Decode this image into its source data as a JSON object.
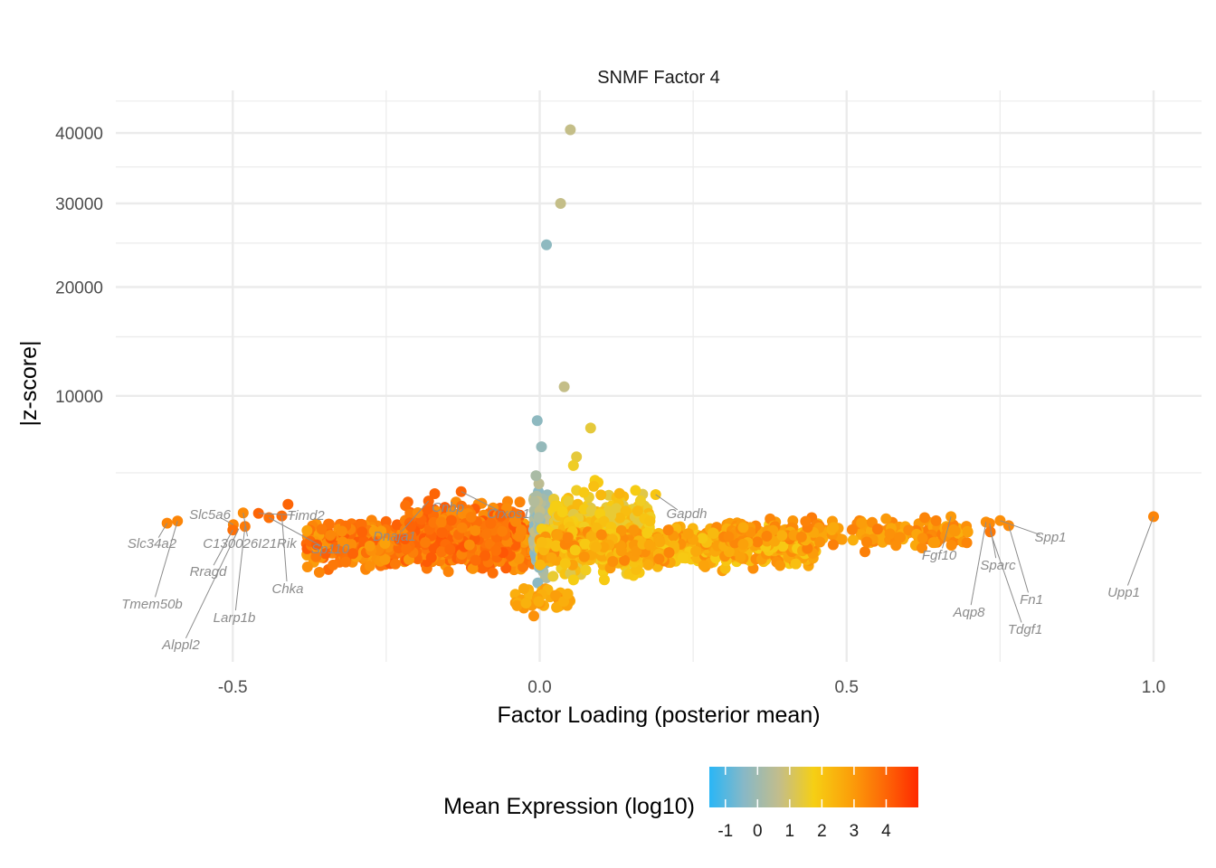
{
  "chart_data": {
    "type": "scatter",
    "title": "SNMF Factor 4",
    "xlabel": "Factor Loading (posterior mean)",
    "ylabel": "|z-score|",
    "x_ticks": [
      -0.5,
      0.0,
      0.5,
      1.0
    ],
    "x_tick_labels": [
      "-0.5",
      "0.0",
      "0.5",
      "1.0"
    ],
    "xlim": [
      -0.69,
      1.08
    ],
    "y_scale": "sqrt",
    "y_ticks": [
      10000,
      20000,
      30000,
      40000
    ],
    "y_tick_labels": [
      "10000",
      "20000",
      "30000",
      "40000"
    ],
    "ylim": [
      0,
      45000
    ],
    "grid": true,
    "legend": {
      "title": "Mean Expression (log10)",
      "position": "bottom",
      "range": [
        -1.5,
        5
      ],
      "ticks": [
        -1,
        0,
        1,
        2,
        3,
        4
      ],
      "tick_labels": [
        "-1",
        "0",
        "1",
        "2",
        "3",
        "4"
      ],
      "colors": [
        "#29b6f6",
        "#88b8c6",
        "#c2bd8c",
        "#f6cf14",
        "#fba20a",
        "#fd6a07",
        "#ff2a00"
      ]
    },
    "points": [
      {
        "x": 0.05,
        "y": 40500,
        "expr": 0.7
      },
      {
        "x": 0.034,
        "y": 30000,
        "expr": 0.7
      },
      {
        "x": 0.011,
        "y": 24800,
        "expr": -0.3
      },
      {
        "x": 0.04,
        "y": 10700,
        "expr": 0.7
      },
      {
        "x": -0.004,
        "y": 8200,
        "expr": -0.3
      },
      {
        "x": 0.083,
        "y": 7700,
        "expr": 1.4
      },
      {
        "x": 0.003,
        "y": 6500,
        "expr": -0.2
      },
      {
        "x": 0.06,
        "y": 5900,
        "expr": 1.4
      },
      {
        "x": 0.055,
        "y": 5400,
        "expr": 1.6
      },
      {
        "x": -0.006,
        "y": 4850,
        "expr": 0.2
      },
      {
        "x": 0.09,
        "y": 4600,
        "expr": 1.8
      },
      {
        "x": 0.095,
        "y": 4500,
        "expr": 1.9
      },
      {
        "x": 0.088,
        "y": 4300,
        "expr": 2.1
      },
      {
        "x": 0.06,
        "y": 4100,
        "expr": 1.6
      },
      {
        "x": 0.072,
        "y": 4000,
        "expr": 1.9
      },
      {
        "x": 0.13,
        "y": 3950,
        "expr": 2.4
      },
      {
        "x": -0.171,
        "y": 3940,
        "expr": 4.0
      },
      {
        "x": -0.128,
        "y": 4040,
        "expr": 4.0
      },
      {
        "x": 0.189,
        "y": 3900,
        "expr": 2.0
      },
      {
        "x": -0.41,
        "y": 3450,
        "expr": 4.0
      },
      {
        "x": -0.483,
        "y": 3080,
        "expr": 3.3
      },
      {
        "x": -0.458,
        "y": 3060,
        "expr": 4.0
      },
      {
        "x": -0.441,
        "y": 2880,
        "expr": 3.8
      },
      {
        "x": -0.42,
        "y": 2950,
        "expr": 3.9
      },
      {
        "x": -0.59,
        "y": 2740,
        "expr": 3.4
      },
      {
        "x": -0.607,
        "y": 2660,
        "expr": 3.4
      },
      {
        "x": -0.499,
        "y": 2600,
        "expr": 3.4
      },
      {
        "x": -0.48,
        "y": 2530,
        "expr": 3.6
      },
      {
        "x": -0.5,
        "y": 2400,
        "expr": 3.8
      },
      {
        "x": -0.181,
        "y": 3600,
        "expr": 4.0
      },
      {
        "x": 0.67,
        "y": 2920,
        "expr": 3.0
      },
      {
        "x": 0.75,
        "y": 2760,
        "expr": 3.2
      },
      {
        "x": 0.727,
        "y": 2700,
        "expr": 3.2
      },
      {
        "x": 0.733,
        "y": 2650,
        "expr": 3.3
      },
      {
        "x": 0.764,
        "y": 2560,
        "expr": 3.3
      },
      {
        "x": 0.734,
        "y": 2330,
        "expr": 3.6
      },
      {
        "x": 0.586,
        "y": 2130,
        "expr": 3.2
      },
      {
        "x": 1.0,
        "y": 2920,
        "expr": 3.4
      }
    ],
    "clusters": [
      {
        "x_range": [
          -0.38,
          -0.01
        ],
        "y_range": [
          900,
          2900
        ],
        "expr_range": [
          2.8,
          4.2
        ],
        "count": 700
      },
      {
        "x_range": [
          -0.22,
          -0.03
        ],
        "y_range": [
          1200,
          3800
        ],
        "expr_range": [
          3.2,
          4.3
        ],
        "count": 300
      },
      {
        "x_range": [
          -0.01,
          0.02
        ],
        "y_range": [
          300,
          4600
        ],
        "expr_range": [
          -0.5,
          0.8
        ],
        "count": 180
      },
      {
        "x_range": [
          0.02,
          0.18
        ],
        "y_range": [
          500,
          4200
        ],
        "expr_range": [
          1.2,
          2.4
        ],
        "count": 450
      },
      {
        "x_range": [
          0.0,
          0.45
        ],
        "y_range": [
          1000,
          2700
        ],
        "expr_range": [
          1.8,
          3.4
        ],
        "count": 850
      },
      {
        "x_range": [
          0.3,
          0.7
        ],
        "y_range": [
          1600,
          3000
        ],
        "expr_range": [
          2.5,
          3.6
        ],
        "count": 200
      },
      {
        "x_range": [
          -0.05,
          0.05
        ],
        "y_range": [
          200,
          800
        ],
        "expr_range": [
          2.4,
          3.2
        ],
        "count": 40
      }
    ],
    "annotations": [
      {
        "label": "Slc34a2",
        "x": -0.607,
        "y": 2660
      },
      {
        "label": "Slc5a6",
        "x": -0.499,
        "y": 2600
      },
      {
        "label": "Timd2",
        "x": -0.458,
        "y": 3060
      },
      {
        "label": "C130026I21Rik",
        "x": -0.483,
        "y": 3080
      },
      {
        "label": "Sp110",
        "x": -0.441,
        "y": 2880
      },
      {
        "label": "Rragd",
        "x": -0.5,
        "y": 2400
      },
      {
        "label": "Chka",
        "x": -0.42,
        "y": 2950
      },
      {
        "label": "Tmem50b",
        "x": -0.59,
        "y": 2740
      },
      {
        "label": "Larp1b",
        "x": -0.48,
        "y": 2530
      },
      {
        "label": "Alppl2",
        "x": -0.49,
        "y": 2450
      },
      {
        "label": "Cnbp",
        "x": -0.171,
        "y": 3940
      },
      {
        "label": "Crxos1",
        "x": -0.128,
        "y": 4040
      },
      {
        "label": "Dnaja1",
        "x": -0.181,
        "y": 3600
      },
      {
        "label": "Gapdh",
        "x": 0.189,
        "y": 3900
      },
      {
        "label": "Fgf10",
        "x": 0.67,
        "y": 2920
      },
      {
        "label": "Spp1",
        "x": 0.75,
        "y": 2760
      },
      {
        "label": "Sparc",
        "x": 0.733,
        "y": 2650
      },
      {
        "label": "Fn1",
        "x": 0.764,
        "y": 2560
      },
      {
        "label": "Aqp8",
        "x": 0.727,
        "y": 2700
      },
      {
        "label": "Tdgf1",
        "x": 0.734,
        "y": 2330
      },
      {
        "label": "Upp1",
        "x": 1.0,
        "y": 2920
      }
    ]
  }
}
